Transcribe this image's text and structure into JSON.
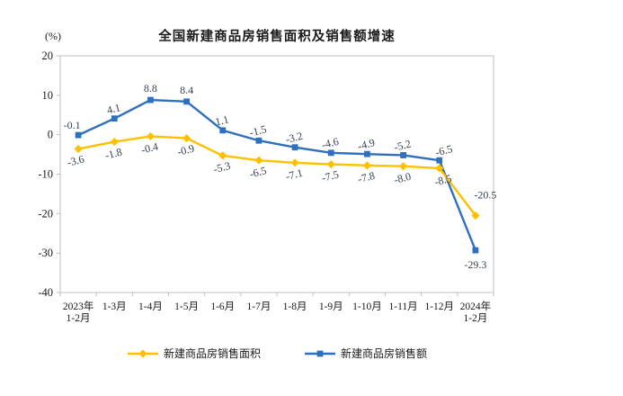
{
  "chart_data": {
    "type": "line",
    "title": "全国新建商品房销售面积及销售额增速",
    "y_unit_label": "(%)",
    "ylim": [
      -40,
      20
    ],
    "yticks": [
      20,
      10,
      0,
      -10,
      -20,
      -30,
      -40
    ],
    "grid": false,
    "legend_position": "bottom",
    "categories": [
      "2023年\n1-2月",
      "1-3月",
      "1-4月",
      "1-5月",
      "1-6月",
      "1-7月",
      "1-8月",
      "1-9月",
      "1-10月",
      "1-11月",
      "1-12月",
      "2024年\n1-2月"
    ],
    "series": [
      {
        "name": "新建商品房销售面积",
        "color": "#FFC000",
        "marker": "diamond",
        "label_side": "below",
        "values": [
          -3.6,
          -1.8,
          -0.4,
          -0.9,
          -5.3,
          -6.5,
          -7.1,
          -7.5,
          -7.8,
          -8.0,
          -8.5,
          -20.5
        ],
        "labels": [
          "-3.6",
          "-1.8",
          "-0.4",
          "-0.9",
          "-5.3",
          "-6.5",
          "-7.1",
          "-7.5",
          "-7.8",
          "-8.0",
          "-8.5",
          "-20.5"
        ]
      },
      {
        "name": "新建商品房销售额",
        "color": "#2E6FBE",
        "marker": "square",
        "label_side": "above",
        "values": [
          -0.1,
          4.1,
          8.8,
          8.4,
          1.1,
          -1.5,
          -3.2,
          -4.6,
          -4.9,
          -5.2,
          -6.5,
          -29.3
        ],
        "labels": [
          "-0.1",
          "4.1",
          "8.8",
          "8.4",
          "1.1",
          "-1.5",
          "-3.2",
          "-4.6",
          "-4.9",
          "-5.2",
          "-6.5",
          "-29.3"
        ]
      }
    ],
    "colors": {
      "axis": "#BFBFBF",
      "tick_label": "#1a1a1a",
      "data_label": "#333F50"
    }
  }
}
